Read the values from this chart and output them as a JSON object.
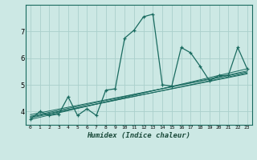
{
  "xlabel": "Humidex (Indice chaleur)",
  "ylabel": "",
  "bg_color": "#cce8e4",
  "grid_color": "#aad0cc",
  "line_color": "#1a6b60",
  "marker_color": "#1a6b60",
  "x_data": [
    0,
    1,
    2,
    3,
    4,
    5,
    6,
    7,
    8,
    9,
    10,
    11,
    12,
    13,
    14,
    15,
    16,
    17,
    18,
    19,
    20,
    21,
    22,
    23
  ],
  "y_data": [
    3.7,
    4.0,
    3.85,
    3.9,
    4.55,
    3.85,
    4.1,
    3.85,
    4.8,
    4.85,
    6.75,
    7.05,
    7.55,
    7.65,
    5.0,
    4.95,
    6.4,
    6.2,
    5.7,
    5.15,
    5.35,
    5.35,
    6.4,
    5.6
  ],
  "trend_lines": [
    {
      "x_start": 0,
      "x_end": 23,
      "y_start": 3.7,
      "y_end": 5.6
    },
    {
      "x_start": 0,
      "x_end": 23,
      "y_start": 3.82,
      "y_end": 5.52
    },
    {
      "x_start": 0,
      "x_end": 23,
      "y_start": 3.88,
      "y_end": 5.48
    },
    {
      "x_start": 0,
      "x_end": 23,
      "y_start": 3.76,
      "y_end": 5.44
    },
    {
      "x_start": 0,
      "x_end": 23,
      "y_start": 3.79,
      "y_end": 5.41
    }
  ],
  "xlim": [
    -0.5,
    23.5
  ],
  "ylim": [
    3.5,
    8.0
  ],
  "yticks": [
    4,
    5,
    6,
    7
  ],
  "xtick_labels": [
    "0",
    "1",
    "2",
    "3",
    "4",
    "5",
    "6",
    "7",
    "8",
    "9",
    "10",
    "11",
    "12",
    "13",
    "14",
    "15",
    "16",
    "17",
    "18",
    "19",
    "20",
    "21",
    "22",
    "23"
  ]
}
